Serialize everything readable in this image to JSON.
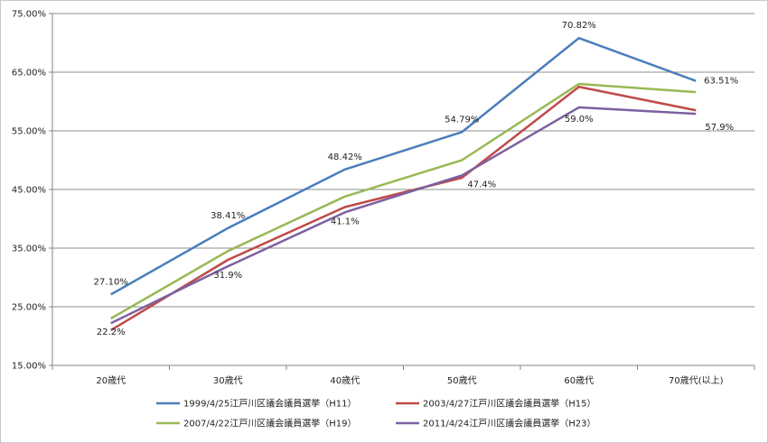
{
  "chart_data": {
    "type": "line",
    "categories": [
      "20歳代",
      "30歳代",
      "40歳代",
      "50歳代",
      "60歳代",
      "70歳代(以上)"
    ],
    "ylim": [
      15,
      75
    ],
    "yticks": [
      "15.00%",
      "25.00%",
      "35.00%",
      "45.00%",
      "55.00%",
      "65.00%",
      "75.00%"
    ],
    "grid": true,
    "legend_position": "bottom",
    "series": [
      {
        "name": "1999/4/25江戸川区議会議員選挙（H11）",
        "color": "#4a7ebb",
        "values": [
          27.1,
          38.41,
          48.42,
          54.79,
          70.82,
          63.51
        ],
        "labels": [
          "27.10%",
          "38.41%",
          "48.42%",
          "54.79%",
          "70.82%",
          "63.51%"
        ]
      },
      {
        "name": "2003/4/27江戸川区議会議員選挙（H15）",
        "color": "#be4b48",
        "values": [
          21.0,
          33.0,
          42.0,
          47.0,
          62.5,
          58.5
        ],
        "labels": []
      },
      {
        "name": "2007/4/22江戸川区議会議員選挙（H19）",
        "color": "#98b954",
        "values": [
          23.0,
          34.5,
          43.8,
          50.0,
          63.0,
          61.6
        ],
        "labels": []
      },
      {
        "name": "2011/4/24江戸川区議会議員選挙（H23）",
        "color": "#7d60a0",
        "values": [
          22.2,
          31.9,
          41.1,
          47.4,
          59.0,
          57.9
        ],
        "labels": [
          "22.2%",
          "31.9%",
          "41.1%",
          "47.4%",
          "59.0%",
          "57.9%"
        ]
      }
    ]
  }
}
